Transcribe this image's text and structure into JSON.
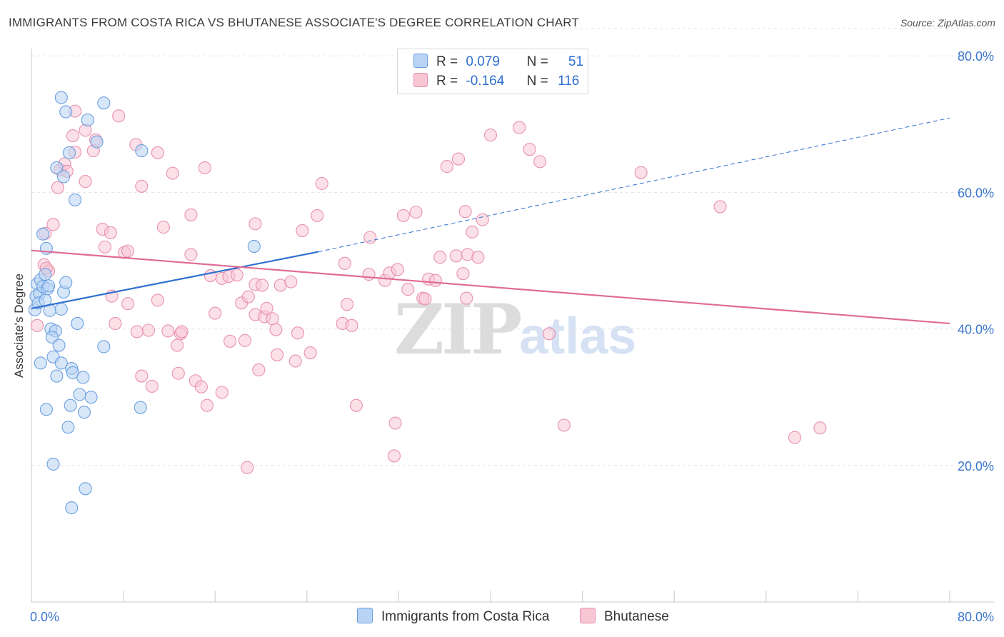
{
  "title": "IMMIGRANTS FROM COSTA RICA VS BHUTANESE ASSOCIATE'S DEGREE CORRELATION CHART",
  "source": "Source: ZipAtlas.com",
  "watermark": {
    "zip": "ZIP",
    "atlas": "atlas"
  },
  "legend": {
    "r_label": "R =",
    "n_label": "N =",
    "series1": {
      "r": "0.079",
      "n": "51"
    },
    "series2": {
      "r": "-0.164",
      "n": "116"
    }
  },
  "colors": {
    "blue_fill": "#b8d3f3",
    "blue_stroke": "#6a9fe0",
    "blue_line": "#2f6fd0",
    "pink_fill": "#f8c6d5",
    "pink_stroke": "#e891ae",
    "pink_line": "#e06b96",
    "axis_text": "#3a76cf",
    "grid": "#e4e4e4"
  },
  "chart_data": {
    "type": "scatter",
    "title": "IMMIGRANTS FROM COSTA RICA VS BHUTANESE ASSOCIATE'S DEGREE CORRELATION CHART",
    "xlabel": "",
    "ylabel": "Associate's Degree",
    "xlim": [
      0,
      80
    ],
    "ylim": [
      0,
      84
    ],
    "x_tick_labels": [
      "0.0%",
      "80.0%"
    ],
    "y_ticks": [
      20,
      40,
      60,
      80
    ],
    "y_tick_labels": [
      "20.0%",
      "40.0%",
      "60.0%",
      "80.0%"
    ],
    "series": [
      {
        "name": "Immigrants from Costa Rica",
        "r": 0.079,
        "n": 51,
        "trend": {
          "x0": 0,
          "y0": 43.0,
          "x1": 25.0,
          "y1": 51.3,
          "dashed_to_x": 80,
          "dashed_to_y": 70.9
        },
        "points": [
          [
            0.3,
            42.8
          ],
          [
            0.4,
            44.8
          ],
          [
            0.5,
            46.6
          ],
          [
            0.7,
            45.2
          ],
          [
            0.6,
            43.8
          ],
          [
            0.8,
            47.2
          ],
          [
            1.0,
            46.2
          ],
          [
            1.2,
            48.0
          ],
          [
            1.3,
            51.8
          ],
          [
            1.0,
            53.9
          ],
          [
            1.4,
            45.9
          ],
          [
            1.6,
            42.7
          ],
          [
            1.7,
            40.0
          ],
          [
            2.1,
            39.7
          ],
          [
            1.8,
            38.8
          ],
          [
            2.4,
            37.6
          ],
          [
            1.9,
            35.9
          ],
          [
            0.8,
            35.0
          ],
          [
            2.6,
            35.0
          ],
          [
            3.5,
            34.2
          ],
          [
            3.6,
            33.6
          ],
          [
            2.2,
            33.1
          ],
          [
            4.5,
            32.9
          ],
          [
            4.2,
            30.4
          ],
          [
            5.2,
            30.0
          ],
          [
            3.4,
            28.8
          ],
          [
            1.3,
            28.2
          ],
          [
            4.6,
            27.8
          ],
          [
            9.5,
            28.5
          ],
          [
            3.2,
            25.6
          ],
          [
            1.9,
            20.2
          ],
          [
            4.7,
            16.6
          ],
          [
            3.5,
            13.8
          ],
          [
            2.8,
            45.4
          ],
          [
            2.6,
            42.9
          ],
          [
            3.0,
            46.8
          ],
          [
            4.0,
            40.8
          ],
          [
            6.3,
            37.4
          ],
          [
            2.6,
            73.9
          ],
          [
            6.3,
            73.1
          ],
          [
            3.0,
            71.8
          ],
          [
            4.9,
            70.6
          ],
          [
            5.7,
            67.4
          ],
          [
            9.6,
            66.1
          ],
          [
            3.3,
            65.8
          ],
          [
            2.2,
            63.6
          ],
          [
            2.8,
            62.3
          ],
          [
            3.8,
            58.9
          ],
          [
            19.4,
            52.1
          ],
          [
            1.2,
            44.2
          ],
          [
            1.5,
            46.3
          ]
        ]
      },
      {
        "name": "Bhutanese",
        "r": -0.164,
        "n": 116,
        "trend": {
          "x0": 0,
          "y0": 51.5,
          "x1": 80,
          "y1": 40.8
        },
        "points": [
          [
            0.5,
            40.5
          ],
          [
            1.1,
            49.4
          ],
          [
            1.5,
            48.5
          ],
          [
            1.2,
            54.0
          ],
          [
            1.9,
            55.3
          ],
          [
            2.5,
            63.3
          ],
          [
            2.9,
            64.2
          ],
          [
            3.1,
            63.1
          ],
          [
            2.3,
            60.7
          ],
          [
            4.7,
            61.6
          ],
          [
            3.6,
            68.3
          ],
          [
            3.8,
            65.9
          ],
          [
            4.7,
            69.1
          ],
          [
            5.4,
            66.1
          ],
          [
            5.6,
            67.7
          ],
          [
            3.8,
            71.9
          ],
          [
            7.6,
            71.2
          ],
          [
            9.1,
            67.0
          ],
          [
            11.0,
            65.8
          ],
          [
            9.6,
            60.9
          ],
          [
            12.3,
            62.8
          ],
          [
            15.1,
            63.6
          ],
          [
            13.9,
            56.7
          ],
          [
            11.5,
            54.9
          ],
          [
            6.2,
            54.6
          ],
          [
            6.9,
            54.1
          ],
          [
            6.4,
            52.0
          ],
          [
            8.1,
            51.2
          ],
          [
            8.4,
            51.4
          ],
          [
            13.9,
            50.9
          ],
          [
            1.3,
            48.9
          ],
          [
            7.0,
            44.8
          ],
          [
            8.4,
            43.7
          ],
          [
            11.0,
            44.2
          ],
          [
            7.3,
            40.8
          ],
          [
            9.2,
            39.6
          ],
          [
            10.2,
            39.8
          ],
          [
            11.9,
            39.7
          ],
          [
            13.0,
            39.3
          ],
          [
            13.1,
            39.6
          ],
          [
            12.7,
            37.6
          ],
          [
            9.6,
            33.1
          ],
          [
            10.5,
            31.6
          ],
          [
            12.8,
            33.5
          ],
          [
            14.3,
            32.4
          ],
          [
            14.8,
            31.5
          ],
          [
            16.6,
            30.7
          ],
          [
            15.3,
            28.8
          ],
          [
            15.6,
            47.8
          ],
          [
            16.6,
            47.4
          ],
          [
            17.2,
            47.7
          ],
          [
            17.9,
            47.9
          ],
          [
            18.3,
            43.8
          ],
          [
            18.9,
            44.7
          ],
          [
            19.5,
            42.1
          ],
          [
            20.3,
            41.8
          ],
          [
            16.0,
            42.3
          ],
          [
            17.3,
            38.2
          ],
          [
            18.6,
            38.3
          ],
          [
            19.8,
            34.0
          ],
          [
            20.5,
            43.0
          ],
          [
            21.0,
            41.5
          ],
          [
            21.3,
            39.9
          ],
          [
            19.5,
            46.5
          ],
          [
            20.1,
            46.4
          ],
          [
            21.7,
            46.4
          ],
          [
            22.6,
            46.9
          ],
          [
            23.2,
            39.4
          ],
          [
            21.4,
            36.2
          ],
          [
            23.0,
            35.3
          ],
          [
            24.3,
            36.5
          ],
          [
            23.6,
            54.4
          ],
          [
            24.9,
            56.6
          ],
          [
            25.3,
            61.3
          ],
          [
            19.5,
            55.4
          ],
          [
            27.3,
            49.6
          ],
          [
            27.5,
            43.6
          ],
          [
            27.1,
            40.8
          ],
          [
            27.9,
            40.5
          ],
          [
            29.4,
            48.0
          ],
          [
            29.5,
            53.4
          ],
          [
            30.8,
            47.1
          ],
          [
            31.2,
            48.2
          ],
          [
            31.9,
            48.7
          ],
          [
            32.4,
            56.6
          ],
          [
            33.5,
            57.1
          ],
          [
            32.8,
            45.8
          ],
          [
            34.6,
            47.3
          ],
          [
            35.2,
            47.1
          ],
          [
            34.1,
            44.5
          ],
          [
            34.3,
            44.4
          ],
          [
            35.6,
            50.5
          ],
          [
            37.0,
            50.7
          ],
          [
            38.0,
            50.9
          ],
          [
            38.9,
            50.5
          ],
          [
            37.6,
            48.1
          ],
          [
            38.4,
            54.2
          ],
          [
            39.3,
            56.0
          ],
          [
            36.2,
            63.8
          ],
          [
            37.2,
            64.9
          ],
          [
            37.8,
            57.2
          ],
          [
            37.9,
            44.5
          ],
          [
            40.0,
            68.4
          ],
          [
            42.5,
            69.5
          ],
          [
            43.4,
            66.3
          ],
          [
            44.3,
            64.5
          ],
          [
            45.1,
            39.3
          ],
          [
            46.4,
            25.9
          ],
          [
            53.1,
            62.9
          ],
          [
            60.0,
            57.9
          ],
          [
            66.5,
            24.1
          ],
          [
            68.7,
            25.5
          ],
          [
            28.3,
            28.8
          ],
          [
            31.7,
            26.2
          ],
          [
            31.6,
            21.4
          ],
          [
            18.8,
            19.7
          ]
        ]
      }
    ]
  },
  "axes": {
    "x_min_label": "0.0%",
    "x_max_label": "80.0%",
    "y_label": "Associate's Degree"
  },
  "bottom_legend": {
    "series1_label": "Immigrants from Costa Rica",
    "series2_label": "Bhutanese"
  }
}
